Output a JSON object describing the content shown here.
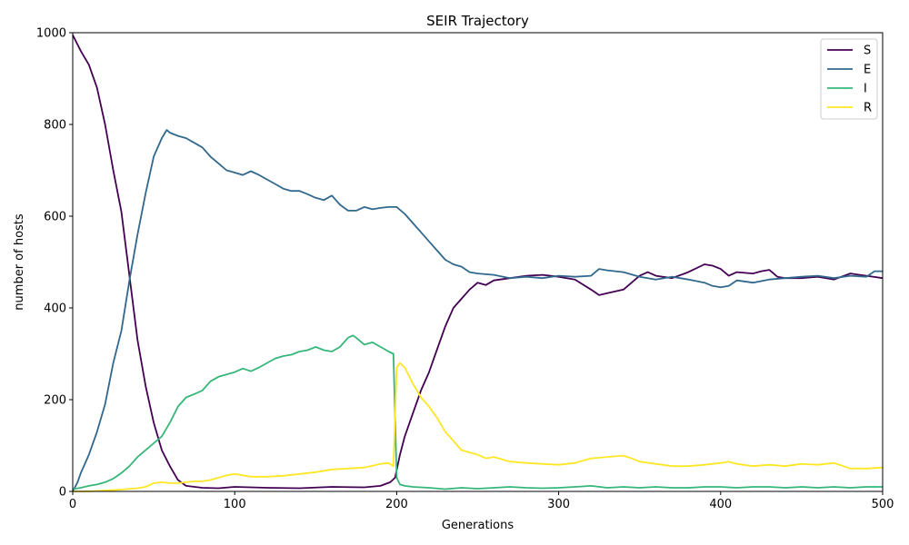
{
  "chart_data": {
    "type": "line",
    "title": "SEIR Trajectory",
    "xlabel": "Generations",
    "ylabel": "number of hosts",
    "xlim": [
      0,
      500
    ],
    "ylim": [
      0,
      1000
    ],
    "xticks": [
      "0",
      "100",
      "200",
      "300",
      "400",
      "500"
    ],
    "yticks": [
      "0",
      "200",
      "400",
      "600",
      "800",
      "1000"
    ],
    "grid": false,
    "legend_position": "top-right",
    "series": [
      {
        "name": "S",
        "color": "#440154",
        "points": [
          [
            0,
            995
          ],
          [
            5,
            960
          ],
          [
            10,
            930
          ],
          [
            15,
            880
          ],
          [
            20,
            800
          ],
          [
            25,
            700
          ],
          [
            30,
            610
          ],
          [
            35,
            470
          ],
          [
            40,
            330
          ],
          [
            45,
            230
          ],
          [
            50,
            150
          ],
          [
            55,
            90
          ],
          [
            60,
            55
          ],
          [
            65,
            25
          ],
          [
            70,
            12
          ],
          [
            80,
            8
          ],
          [
            90,
            7
          ],
          [
            100,
            10
          ],
          [
            120,
            8
          ],
          [
            140,
            7
          ],
          [
            160,
            10
          ],
          [
            180,
            9
          ],
          [
            190,
            12
          ],
          [
            196,
            20
          ],
          [
            199,
            30
          ],
          [
            202,
            80
          ],
          [
            205,
            120
          ],
          [
            210,
            170
          ],
          [
            215,
            220
          ],
          [
            220,
            260
          ],
          [
            225,
            310
          ],
          [
            230,
            360
          ],
          [
            235,
            400
          ],
          [
            240,
            420
          ],
          [
            245,
            440
          ],
          [
            250,
            455
          ],
          [
            255,
            450
          ],
          [
            260,
            460
          ],
          [
            270,
            465
          ],
          [
            280,
            470
          ],
          [
            290,
            472
          ],
          [
            300,
            468
          ],
          [
            310,
            462
          ],
          [
            320,
            440
          ],
          [
            325,
            428
          ],
          [
            330,
            432
          ],
          [
            340,
            440
          ],
          [
            350,
            470
          ],
          [
            355,
            478
          ],
          [
            360,
            470
          ],
          [
            370,
            465
          ],
          [
            380,
            478
          ],
          [
            390,
            495
          ],
          [
            395,
            492
          ],
          [
            400,
            485
          ],
          [
            405,
            470
          ],
          [
            410,
            478
          ],
          [
            420,
            475
          ],
          [
            425,
            480
          ],
          [
            430,
            483
          ],
          [
            435,
            468
          ],
          [
            440,
            465
          ],
          [
            450,
            465
          ],
          [
            460,
            468
          ],
          [
            470,
            462
          ],
          [
            480,
            475
          ],
          [
            490,
            470
          ],
          [
            500,
            465
          ]
        ]
      },
      {
        "name": "E",
        "color": "#31688e",
        "points": [
          [
            0,
            0
          ],
          [
            3,
            20
          ],
          [
            5,
            40
          ],
          [
            10,
            80
          ],
          [
            15,
            130
          ],
          [
            20,
            190
          ],
          [
            25,
            280
          ],
          [
            30,
            350
          ],
          [
            35,
            460
          ],
          [
            40,
            560
          ],
          [
            45,
            650
          ],
          [
            50,
            730
          ],
          [
            55,
            770
          ],
          [
            58,
            788
          ],
          [
            60,
            782
          ],
          [
            65,
            775
          ],
          [
            70,
            770
          ],
          [
            75,
            760
          ],
          [
            80,
            750
          ],
          [
            85,
            730
          ],
          [
            90,
            715
          ],
          [
            95,
            700
          ],
          [
            100,
            695
          ],
          [
            105,
            690
          ],
          [
            110,
            698
          ],
          [
            115,
            690
          ],
          [
            120,
            680
          ],
          [
            125,
            670
          ],
          [
            130,
            660
          ],
          [
            135,
            655
          ],
          [
            140,
            655
          ],
          [
            145,
            648
          ],
          [
            150,
            640
          ],
          [
            155,
            635
          ],
          [
            160,
            645
          ],
          [
            165,
            625
          ],
          [
            170,
            612
          ],
          [
            175,
            612
          ],
          [
            180,
            620
          ],
          [
            185,
            615
          ],
          [
            190,
            618
          ],
          [
            195,
            620
          ],
          [
            200,
            620
          ],
          [
            205,
            605
          ],
          [
            210,
            585
          ],
          [
            215,
            565
          ],
          [
            220,
            545
          ],
          [
            225,
            525
          ],
          [
            230,
            505
          ],
          [
            235,
            495
          ],
          [
            240,
            490
          ],
          [
            245,
            478
          ],
          [
            250,
            475
          ],
          [
            260,
            472
          ],
          [
            270,
            465
          ],
          [
            280,
            468
          ],
          [
            290,
            465
          ],
          [
            300,
            470
          ],
          [
            310,
            468
          ],
          [
            320,
            470
          ],
          [
            325,
            485
          ],
          [
            330,
            482
          ],
          [
            340,
            478
          ],
          [
            350,
            468
          ],
          [
            360,
            462
          ],
          [
            370,
            468
          ],
          [
            380,
            462
          ],
          [
            390,
            455
          ],
          [
            395,
            448
          ],
          [
            400,
            445
          ],
          [
            405,
            448
          ],
          [
            410,
            460
          ],
          [
            420,
            455
          ],
          [
            430,
            462
          ],
          [
            440,
            465
          ],
          [
            450,
            468
          ],
          [
            460,
            470
          ],
          [
            470,
            465
          ],
          [
            480,
            470
          ],
          [
            490,
            468
          ],
          [
            495,
            480
          ],
          [
            500,
            480
          ]
        ]
      },
      {
        "name": "I",
        "color": "#35b779",
        "points": [
          [
            0,
            5
          ],
          [
            5,
            8
          ],
          [
            10,
            12
          ],
          [
            15,
            15
          ],
          [
            20,
            20
          ],
          [
            25,
            28
          ],
          [
            30,
            40
          ],
          [
            35,
            55
          ],
          [
            40,
            75
          ],
          [
            45,
            90
          ],
          [
            50,
            105
          ],
          [
            55,
            120
          ],
          [
            60,
            150
          ],
          [
            65,
            185
          ],
          [
            70,
            205
          ],
          [
            75,
            212
          ],
          [
            80,
            220
          ],
          [
            85,
            240
          ],
          [
            90,
            250
          ],
          [
            95,
            255
          ],
          [
            100,
            260
          ],
          [
            105,
            268
          ],
          [
            110,
            262
          ],
          [
            115,
            270
          ],
          [
            120,
            280
          ],
          [
            125,
            290
          ],
          [
            130,
            295
          ],
          [
            135,
            298
          ],
          [
            140,
            305
          ],
          [
            145,
            308
          ],
          [
            150,
            315
          ],
          [
            155,
            308
          ],
          [
            160,
            305
          ],
          [
            165,
            315
          ],
          [
            170,
            335
          ],
          [
            173,
            340
          ],
          [
            175,
            335
          ],
          [
            180,
            320
          ],
          [
            185,
            325
          ],
          [
            190,
            315
          ],
          [
            195,
            305
          ],
          [
            198,
            300
          ],
          [
            200,
            30
          ],
          [
            202,
            15
          ],
          [
            205,
            12
          ],
          [
            210,
            10
          ],
          [
            220,
            8
          ],
          [
            230,
            5
          ],
          [
            240,
            8
          ],
          [
            250,
            6
          ],
          [
            260,
            8
          ],
          [
            270,
            10
          ],
          [
            280,
            8
          ],
          [
            290,
            7
          ],
          [
            300,
            8
          ],
          [
            310,
            10
          ],
          [
            320,
            12
          ],
          [
            330,
            8
          ],
          [
            340,
            10
          ],
          [
            350,
            8
          ],
          [
            360,
            10
          ],
          [
            370,
            8
          ],
          [
            380,
            8
          ],
          [
            390,
            10
          ],
          [
            400,
            10
          ],
          [
            410,
            8
          ],
          [
            420,
            10
          ],
          [
            430,
            10
          ],
          [
            440,
            8
          ],
          [
            450,
            10
          ],
          [
            460,
            8
          ],
          [
            470,
            10
          ],
          [
            480,
            8
          ],
          [
            490,
            10
          ],
          [
            500,
            10
          ]
        ]
      },
      {
        "name": "R",
        "color": "#fde725",
        "points": [
          [
            0,
            0
          ],
          [
            10,
            0
          ],
          [
            20,
            2
          ],
          [
            30,
            4
          ],
          [
            40,
            7
          ],
          [
            45,
            10
          ],
          [
            50,
            18
          ],
          [
            55,
            20
          ],
          [
            60,
            18
          ],
          [
            65,
            18
          ],
          [
            70,
            20
          ],
          [
            75,
            22
          ],
          [
            80,
            22
          ],
          [
            85,
            25
          ],
          [
            90,
            30
          ],
          [
            95,
            35
          ],
          [
            100,
            38
          ],
          [
            110,
            32
          ],
          [
            120,
            32
          ],
          [
            130,
            34
          ],
          [
            140,
            38
          ],
          [
            150,
            42
          ],
          [
            160,
            48
          ],
          [
            170,
            50
          ],
          [
            180,
            52
          ],
          [
            190,
            60
          ],
          [
            195,
            62
          ],
          [
            198,
            55
          ],
          [
            200,
            270
          ],
          [
            202,
            280
          ],
          [
            205,
            270
          ],
          [
            210,
            235
          ],
          [
            215,
            205
          ],
          [
            220,
            185
          ],
          [
            225,
            160
          ],
          [
            230,
            130
          ],
          [
            235,
            110
          ],
          [
            240,
            90
          ],
          [
            250,
            80
          ],
          [
            255,
            72
          ],
          [
            260,
            75
          ],
          [
            270,
            65
          ],
          [
            280,
            62
          ],
          [
            290,
            60
          ],
          [
            300,
            58
          ],
          [
            310,
            62
          ],
          [
            320,
            72
          ],
          [
            330,
            75
          ],
          [
            340,
            78
          ],
          [
            345,
            72
          ],
          [
            350,
            65
          ],
          [
            360,
            60
          ],
          [
            370,
            55
          ],
          [
            380,
            55
          ],
          [
            390,
            58
          ],
          [
            400,
            62
          ],
          [
            405,
            65
          ],
          [
            410,
            60
          ],
          [
            420,
            55
          ],
          [
            430,
            58
          ],
          [
            440,
            55
          ],
          [
            450,
            60
          ],
          [
            460,
            58
          ],
          [
            470,
            62
          ],
          [
            480,
            50
          ],
          [
            490,
            50
          ],
          [
            500,
            52
          ]
        ]
      }
    ]
  }
}
